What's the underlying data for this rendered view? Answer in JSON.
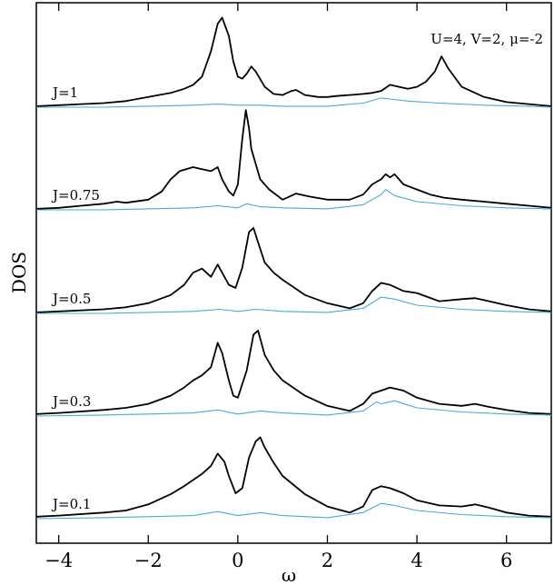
{
  "chart_data": {
    "type": "line",
    "title": "",
    "xlabel": "ω",
    "ylabel": "DOS",
    "xlim": [
      -4.5,
      7
    ],
    "xticks": [
      -4,
      -2,
      0,
      2,
      4,
      6
    ],
    "xtick_labels": [
      "−4",
      "−2",
      "0",
      "2",
      "4",
      "6"
    ],
    "annotation": "U=4, V=2, μ=-2",
    "colors": {
      "total": "#000000",
      "partial": "#4aa8d8"
    },
    "panels": [
      {
        "label": "J=1",
        "series": [
          {
            "role": "total",
            "x": [
              -4.5,
              -4,
              -3.5,
              -3,
              -2.5,
              -2,
              -1.5,
              -1.2,
              -1,
              -0.8,
              -0.6,
              -0.45,
              -0.35,
              -0.2,
              -0.1,
              0,
              0.1,
              0.2,
              0.3,
              0.4,
              0.6,
              0.8,
              1,
              1.2,
              1.3,
              1.5,
              1.8,
              2,
              2.2,
              2.5,
              2.8,
              3,
              3.2,
              3.4,
              3.6,
              3.8,
              4,
              4.2,
              4.4,
              4.55,
              4.7,
              5,
              5.5,
              6,
              6.5,
              7
            ],
            "y": [
              0.01,
              0.02,
              0.03,
              0.04,
              0.06,
              0.1,
              0.14,
              0.18,
              0.22,
              0.3,
              0.55,
              0.82,
              0.88,
              0.7,
              0.45,
              0.3,
              0.28,
              0.33,
              0.4,
              0.35,
              0.2,
              0.13,
              0.12,
              0.16,
              0.17,
              0.12,
              0.1,
              0.1,
              0.11,
              0.12,
              0.13,
              0.14,
              0.16,
              0.22,
              0.2,
              0.18,
              0.2,
              0.25,
              0.35,
              0.5,
              0.38,
              0.2,
              0.1,
              0.05,
              0.03,
              0.01
            ]
          },
          {
            "role": "partial",
            "x": [
              -4.5,
              -4,
              -3,
              -2,
              -1,
              -0.45,
              0,
              0.5,
              1,
              2,
              2.8,
              3.2,
              3.4,
              3.8,
              4.5,
              5.5,
              6.5,
              7
            ],
            "y": [
              0.0,
              0.0,
              0.0,
              0.01,
              0.02,
              0.03,
              0.02,
              0.02,
              0.01,
              0.01,
              0.04,
              0.09,
              0.08,
              0.06,
              0.04,
              0.02,
              0.01,
              0.0
            ]
          }
        ]
      },
      {
        "label": "J=0.75",
        "series": [
          {
            "role": "total",
            "x": [
              -4.5,
              -4,
              -3.5,
              -3,
              -2.7,
              -2.5,
              -2,
              -1.7,
              -1.5,
              -1.3,
              -1,
              -0.8,
              -0.6,
              -0.45,
              -0.35,
              -0.2,
              -0.1,
              0,
              0.1,
              0.18,
              0.25,
              0.3,
              0.4,
              0.5,
              0.7,
              1,
              1.3,
              1.6,
              2,
              2.5,
              2.8,
              3,
              3.2,
              3.3,
              3.4,
              3.5,
              3.7,
              4,
              4.3,
              4.6,
              5,
              5.5,
              6,
              6.5,
              7
            ],
            "y": [
              0.01,
              0.02,
              0.04,
              0.06,
              0.08,
              0.07,
              0.1,
              0.18,
              0.3,
              0.38,
              0.42,
              0.4,
              0.38,
              0.42,
              0.3,
              0.18,
              0.14,
              0.25,
              0.7,
              0.98,
              0.8,
              0.6,
              0.45,
              0.3,
              0.2,
              0.1,
              0.16,
              0.13,
              0.1,
              0.1,
              0.15,
              0.25,
              0.3,
              0.35,
              0.32,
              0.35,
              0.25,
              0.2,
              0.15,
              0.12,
              0.1,
              0.08,
              0.06,
              0.04,
              0.02
            ]
          },
          {
            "role": "partial",
            "x": [
              -4.5,
              -3,
              -2,
              -1,
              -0.45,
              0,
              0.2,
              0.5,
              1,
              2,
              2.8,
              3.2,
              3.3,
              3.5,
              4,
              5,
              6,
              7
            ],
            "y": [
              0.0,
              0.0,
              0.01,
              0.02,
              0.04,
              0.02,
              0.06,
              0.03,
              0.02,
              0.01,
              0.05,
              0.15,
              0.2,
              0.14,
              0.08,
              0.04,
              0.02,
              0.01
            ]
          }
        ]
      },
      {
        "label": "J=0.5",
        "series": [
          {
            "role": "total",
            "x": [
              -4.5,
              -4,
              -3,
              -2.5,
              -2,
              -1.5,
              -1.2,
              -1,
              -0.8,
              -0.6,
              -0.45,
              -0.35,
              -0.2,
              -0.05,
              0.1,
              0.25,
              0.35,
              0.45,
              0.6,
              0.8,
              1,
              1.5,
              2,
              2.5,
              2.8,
              3,
              3.2,
              3.4,
              3.7,
              4,
              4.5,
              5,
              5.3,
              5.5,
              6,
              6.5,
              7
            ],
            "y": [
              0.01,
              0.02,
              0.04,
              0.06,
              0.1,
              0.18,
              0.28,
              0.4,
              0.44,
              0.36,
              0.48,
              0.4,
              0.28,
              0.25,
              0.45,
              0.8,
              0.84,
              0.7,
              0.5,
              0.4,
              0.33,
              0.18,
              0.1,
              0.05,
              0.1,
              0.22,
              0.3,
              0.28,
              0.22,
              0.2,
              0.12,
              0.14,
              0.15,
              0.13,
              0.08,
              0.04,
              0.02
            ]
          },
          {
            "role": "partial",
            "x": [
              -4.5,
              -3,
              -2,
              -1,
              -0.4,
              0,
              0.4,
              1,
              2,
              2.8,
              3.2,
              3.5,
              4,
              5,
              6,
              7
            ],
            "y": [
              0.0,
              0.0,
              0.01,
              0.02,
              0.04,
              0.02,
              0.04,
              0.02,
              0.01,
              0.05,
              0.16,
              0.14,
              0.08,
              0.04,
              0.02,
              0.01
            ]
          }
        ]
      },
      {
        "label": "J=0.3",
        "series": [
          {
            "role": "total",
            "x": [
              -4.5,
              -4,
              -3,
              -2.5,
              -2,
              -1.5,
              -1.2,
              -1,
              -0.8,
              -0.6,
              -0.45,
              -0.35,
              -0.2,
              -0.1,
              0,
              0.2,
              0.35,
              0.45,
              0.6,
              0.8,
              1,
              1.5,
              2,
              2.5,
              2.8,
              3,
              3.2,
              3.4,
              3.7,
              4,
              4.5,
              5,
              5.3,
              5.6,
              6,
              6.5,
              7
            ],
            "y": [
              0.02,
              0.03,
              0.06,
              0.08,
              0.12,
              0.2,
              0.28,
              0.35,
              0.4,
              0.48,
              0.72,
              0.62,
              0.35,
              0.2,
              0.18,
              0.45,
              0.8,
              0.84,
              0.6,
              0.45,
              0.35,
              0.2,
              0.1,
              0.05,
              0.12,
              0.22,
              0.25,
              0.28,
              0.25,
              0.18,
              0.12,
              0.1,
              0.12,
              0.09,
              0.06,
              0.03,
              0.02
            ]
          },
          {
            "role": "partial",
            "x": [
              -4.5,
              -3,
              -2,
              -1,
              -0.45,
              0,
              0.5,
              1,
              2,
              2.8,
              3.1,
              3.2,
              3.5,
              4,
              5,
              6,
              7
            ],
            "y": [
              0.0,
              0.01,
              0.02,
              0.03,
              0.06,
              0.02,
              0.05,
              0.03,
              0.01,
              0.05,
              0.14,
              0.12,
              0.15,
              0.08,
              0.04,
              0.02,
              0.01
            ]
          }
        ]
      },
      {
        "label": "J=0.1",
        "series": [
          {
            "role": "total",
            "x": [
              -4.5,
              -4,
              -3,
              -2.5,
              -2,
              -1.5,
              -1.2,
              -1,
              -0.8,
              -0.6,
              -0.45,
              -0.3,
              -0.2,
              -0.05,
              0.1,
              0.25,
              0.4,
              0.5,
              0.6,
              0.8,
              1,
              1.5,
              2,
              2.5,
              2.8,
              3,
              3.2,
              3.4,
              3.7,
              4,
              4.5,
              5,
              5.3,
              5.6,
              6,
              6.5,
              7
            ],
            "y": [
              0.02,
              0.03,
              0.06,
              0.08,
              0.14,
              0.24,
              0.32,
              0.38,
              0.44,
              0.52,
              0.64,
              0.56,
              0.42,
              0.25,
              0.3,
              0.6,
              0.76,
              0.8,
              0.7,
              0.55,
              0.42,
              0.24,
              0.12,
              0.06,
              0.12,
              0.28,
              0.32,
              0.3,
              0.25,
              0.18,
              0.13,
              0.12,
              0.14,
              0.11,
              0.06,
              0.03,
              0.02
            ]
          },
          {
            "role": "partial",
            "x": [
              -4.5,
              -3,
              -2,
              -1,
              -0.45,
              0,
              0.5,
              1,
              2,
              2.8,
              3.2,
              3.5,
              4,
              5,
              6,
              7
            ],
            "y": [
              0.0,
              0.01,
              0.02,
              0.03,
              0.07,
              0.03,
              0.06,
              0.03,
              0.01,
              0.06,
              0.15,
              0.13,
              0.08,
              0.04,
              0.02,
              0.01
            ]
          }
        ]
      }
    ]
  }
}
